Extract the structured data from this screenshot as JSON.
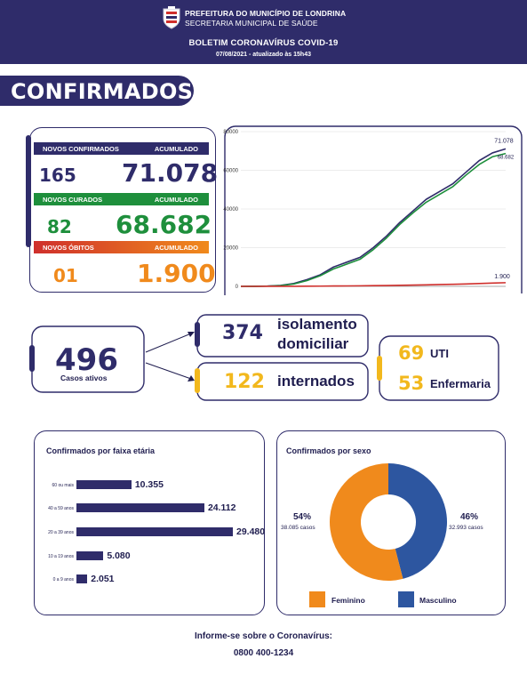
{
  "header": {
    "line1": "PREFEITURA DO MUNICÍPIO DE LONDRINA",
    "line2": "SECRETARIA MUNICIPAL DE SAÚDE",
    "title": "BOLETIM CORONAVÍRUS COVID-19",
    "date": "07/08/2021 - atualizado às 15h43"
  },
  "section_title": "CONFIRMADOS",
  "colors": {
    "navy": "#2f2c6a",
    "green": "#1e8f3c",
    "orange": "#f08a1c",
    "red": "#cf2f2c",
    "yellow": "#f2b81d",
    "blue": "#2d56a0"
  },
  "stats": {
    "confirmed": {
      "header_left": "NOVOS CONFIRMADOS",
      "header_right": "ACUMULADO",
      "new": "165",
      "total": "71.078"
    },
    "recovered": {
      "header_left": "NOVOS CURADOS",
      "header_right": "ACUMULADO",
      "new": "82",
      "total": "68.682"
    },
    "deaths": {
      "header_left": "NOVOS ÓBITOS",
      "header_right": "ACUMULADO",
      "new": "01",
      "total": "1.900"
    }
  },
  "chart_data": [
    {
      "type": "line",
      "yticks": [
        "80000",
        "60000",
        "40000",
        "20000",
        "0"
      ],
      "ylim": [
        0,
        80000
      ],
      "x": [
        0,
        1,
        2,
        3,
        4,
        5,
        6,
        7,
        8,
        9,
        10,
        11,
        12,
        13,
        14,
        15,
        16,
        17,
        18,
        19,
        20
      ],
      "series": [
        {
          "color": "#2f2c6a",
          "values": [
            0,
            50,
            150,
            500,
            1500,
            3500,
            6000,
            10000,
            12500,
            15000,
            20000,
            26000,
            33000,
            39000,
            45000,
            49000,
            53000,
            59000,
            65000,
            69000,
            71078
          ],
          "end_label": "71.078"
        },
        {
          "color": "#1e8f3c",
          "values": [
            0,
            40,
            120,
            400,
            1200,
            3000,
            5500,
            9000,
            11500,
            14000,
            19000,
            25000,
            32000,
            38000,
            43500,
            47500,
            51500,
            57500,
            63000,
            67000,
            68682
          ],
          "end_label": "68.682"
        },
        {
          "color": "#cf2f2c",
          "values": [
            0,
            5,
            10,
            20,
            40,
            80,
            120,
            180,
            230,
            290,
            360,
            440,
            540,
            660,
            790,
            930,
            1080,
            1250,
            1450,
            1680,
            1900
          ],
          "end_label": "1.900"
        }
      ]
    },
    {
      "type": "bar",
      "title": "Confirmados por faixa etária",
      "categories": [
        "60 ou mais",
        "40 a 59 anos",
        "20 a 39 anos",
        "10 a 19 anos",
        "0 a 9 anos"
      ],
      "values": [
        10355,
        24112,
        29480,
        5080,
        2051
      ],
      "value_labels": [
        "10.355",
        "24.112",
        "29.480",
        "5.080",
        "2.051"
      ],
      "orientation": "horizontal"
    },
    {
      "type": "pie",
      "title": "Confirmados por sexo",
      "style": "donut",
      "slices": [
        {
          "name": "Feminino",
          "value": 54,
          "color": "#f08a1c",
          "pct_label": "54%",
          "count_label": "38.085 casos"
        },
        {
          "name": "Masculino",
          "value": 46,
          "color": "#2d56a0",
          "pct_label": "46%",
          "count_label": "32.993 casos"
        }
      ]
    }
  ],
  "active": {
    "count": "496",
    "label": "Casos ativos",
    "isolation": {
      "count": "374",
      "label_line1": "isolamento",
      "label_line2": "domiciliar"
    },
    "hospital": {
      "count": "122",
      "label": "internados"
    },
    "uti": {
      "count": "69",
      "label": "UTI"
    },
    "ward": {
      "count": "53",
      "label": "Enfermaria"
    }
  },
  "footer": {
    "line1": "Informe-se sobre o Coronavírus:",
    "line2": "0800 400-1234"
  }
}
